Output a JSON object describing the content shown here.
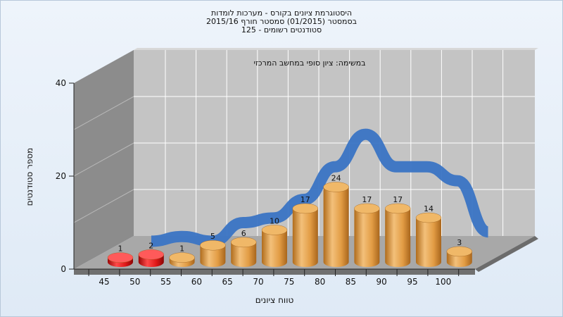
{
  "titles": [
    "היסטוגרמת ציונים בקורס - מערכות לומדות",
    "בסמסטר (01/2015) סמסטר חורף 2015/16",
    "סטודנטים רשומים - 125"
  ],
  "colors": {
    "fail": "#e01818",
    "pass": "#e0a050",
    "curve": "#3a74c4",
    "wall": "#c4c4c4",
    "side_wall": "#8c8c8c",
    "floor": "#a8a8a8"
  },
  "chart_data": {
    "type": "bar",
    "annotation": "במשימה: ציון סופי במחשב המרכזי",
    "xlabel": "טווח ציונים",
    "ylabel": "מספר סטודנטים",
    "x_ticks": [
      "45",
      "50",
      "55",
      "60",
      "65",
      "70",
      "75",
      "80",
      "85",
      "90",
      "95",
      "100"
    ],
    "y_ticks": [
      "0",
      "20",
      "40"
    ],
    "ylim": [
      0,
      40
    ],
    "grid": true,
    "series": [
      {
        "values": [
          1,
          2,
          1,
          5,
          6,
          10,
          17,
          24,
          17,
          17,
          14,
          3
        ],
        "colors": [
          "fail",
          "fail",
          "pass",
          "pass",
          "pass",
          "pass",
          "pass",
          "pass",
          "pass",
          "pass",
          "pass",
          "pass"
        ]
      }
    ],
    "trend_curve": true
  }
}
